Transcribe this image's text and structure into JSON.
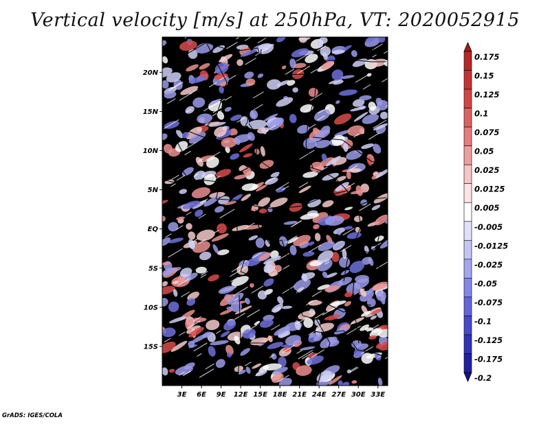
{
  "title": "Vertical velocity [m/s] at 250hPa, VT: 2020052915",
  "credit": "GrADS: IGES/COLA",
  "map": {
    "lat_range": [
      -20,
      24.5
    ],
    "lon_range": [
      0,
      34.5
    ],
    "lat_ticks": [
      {
        "value": 20,
        "label": "20N"
      },
      {
        "value": 15,
        "label": "15N"
      },
      {
        "value": 10,
        "label": "10N"
      },
      {
        "value": 5,
        "label": "5N"
      },
      {
        "value": 0,
        "label": "EQ"
      },
      {
        "value": -5,
        "label": "5S"
      },
      {
        "value": -10,
        "label": "10S"
      },
      {
        "value": -15,
        "label": "15S"
      }
    ],
    "lon_ticks": [
      {
        "value": 3,
        "label": "3E"
      },
      {
        "value": 6,
        "label": "6E"
      },
      {
        "value": 9,
        "label": "9E"
      },
      {
        "value": 12,
        "label": "12E"
      },
      {
        "value": 15,
        "label": "15E"
      },
      {
        "value": 18,
        "label": "18E"
      },
      {
        "value": 21,
        "label": "21E"
      },
      {
        "value": 24,
        "label": "24E"
      },
      {
        "value": 27,
        "label": "27E"
      },
      {
        "value": 30,
        "label": "30E"
      },
      {
        "value": 33,
        "label": "33E"
      }
    ]
  },
  "colorbar": {
    "levels": [
      "0.175",
      "0.15",
      "0.125",
      "0.1",
      "0.075",
      "0.05",
      "0.025",
      "0.0125",
      "0.005",
      "-0.005",
      "-0.0125",
      "-0.025",
      "-0.05",
      "-0.075",
      "-0.1",
      "-0.125",
      "-0.175",
      "-0.2"
    ],
    "colors": [
      "#a01c1c",
      "#b42828",
      "#c53434",
      "#d24646",
      "#dc6262",
      "#e47d7d",
      "#ee9e9e",
      "#f6c6c6",
      "#fbe4e4",
      "#ffffff",
      "#e0e0fb",
      "#c6c6f6",
      "#a6a6f0",
      "#8686e8",
      "#6464dc",
      "#4848cc",
      "#3232b8",
      "#2020a0",
      "#14148a"
    ]
  },
  "field_colors": {
    "strong_up": "#d94b4b",
    "up": "#eb8f8f",
    "weak_up": "#f6caca",
    "neutral": "#ffffff",
    "weak_down": "#cfd0f6",
    "down": "#9a9ae8",
    "strong_down": "#6e70d8"
  }
}
